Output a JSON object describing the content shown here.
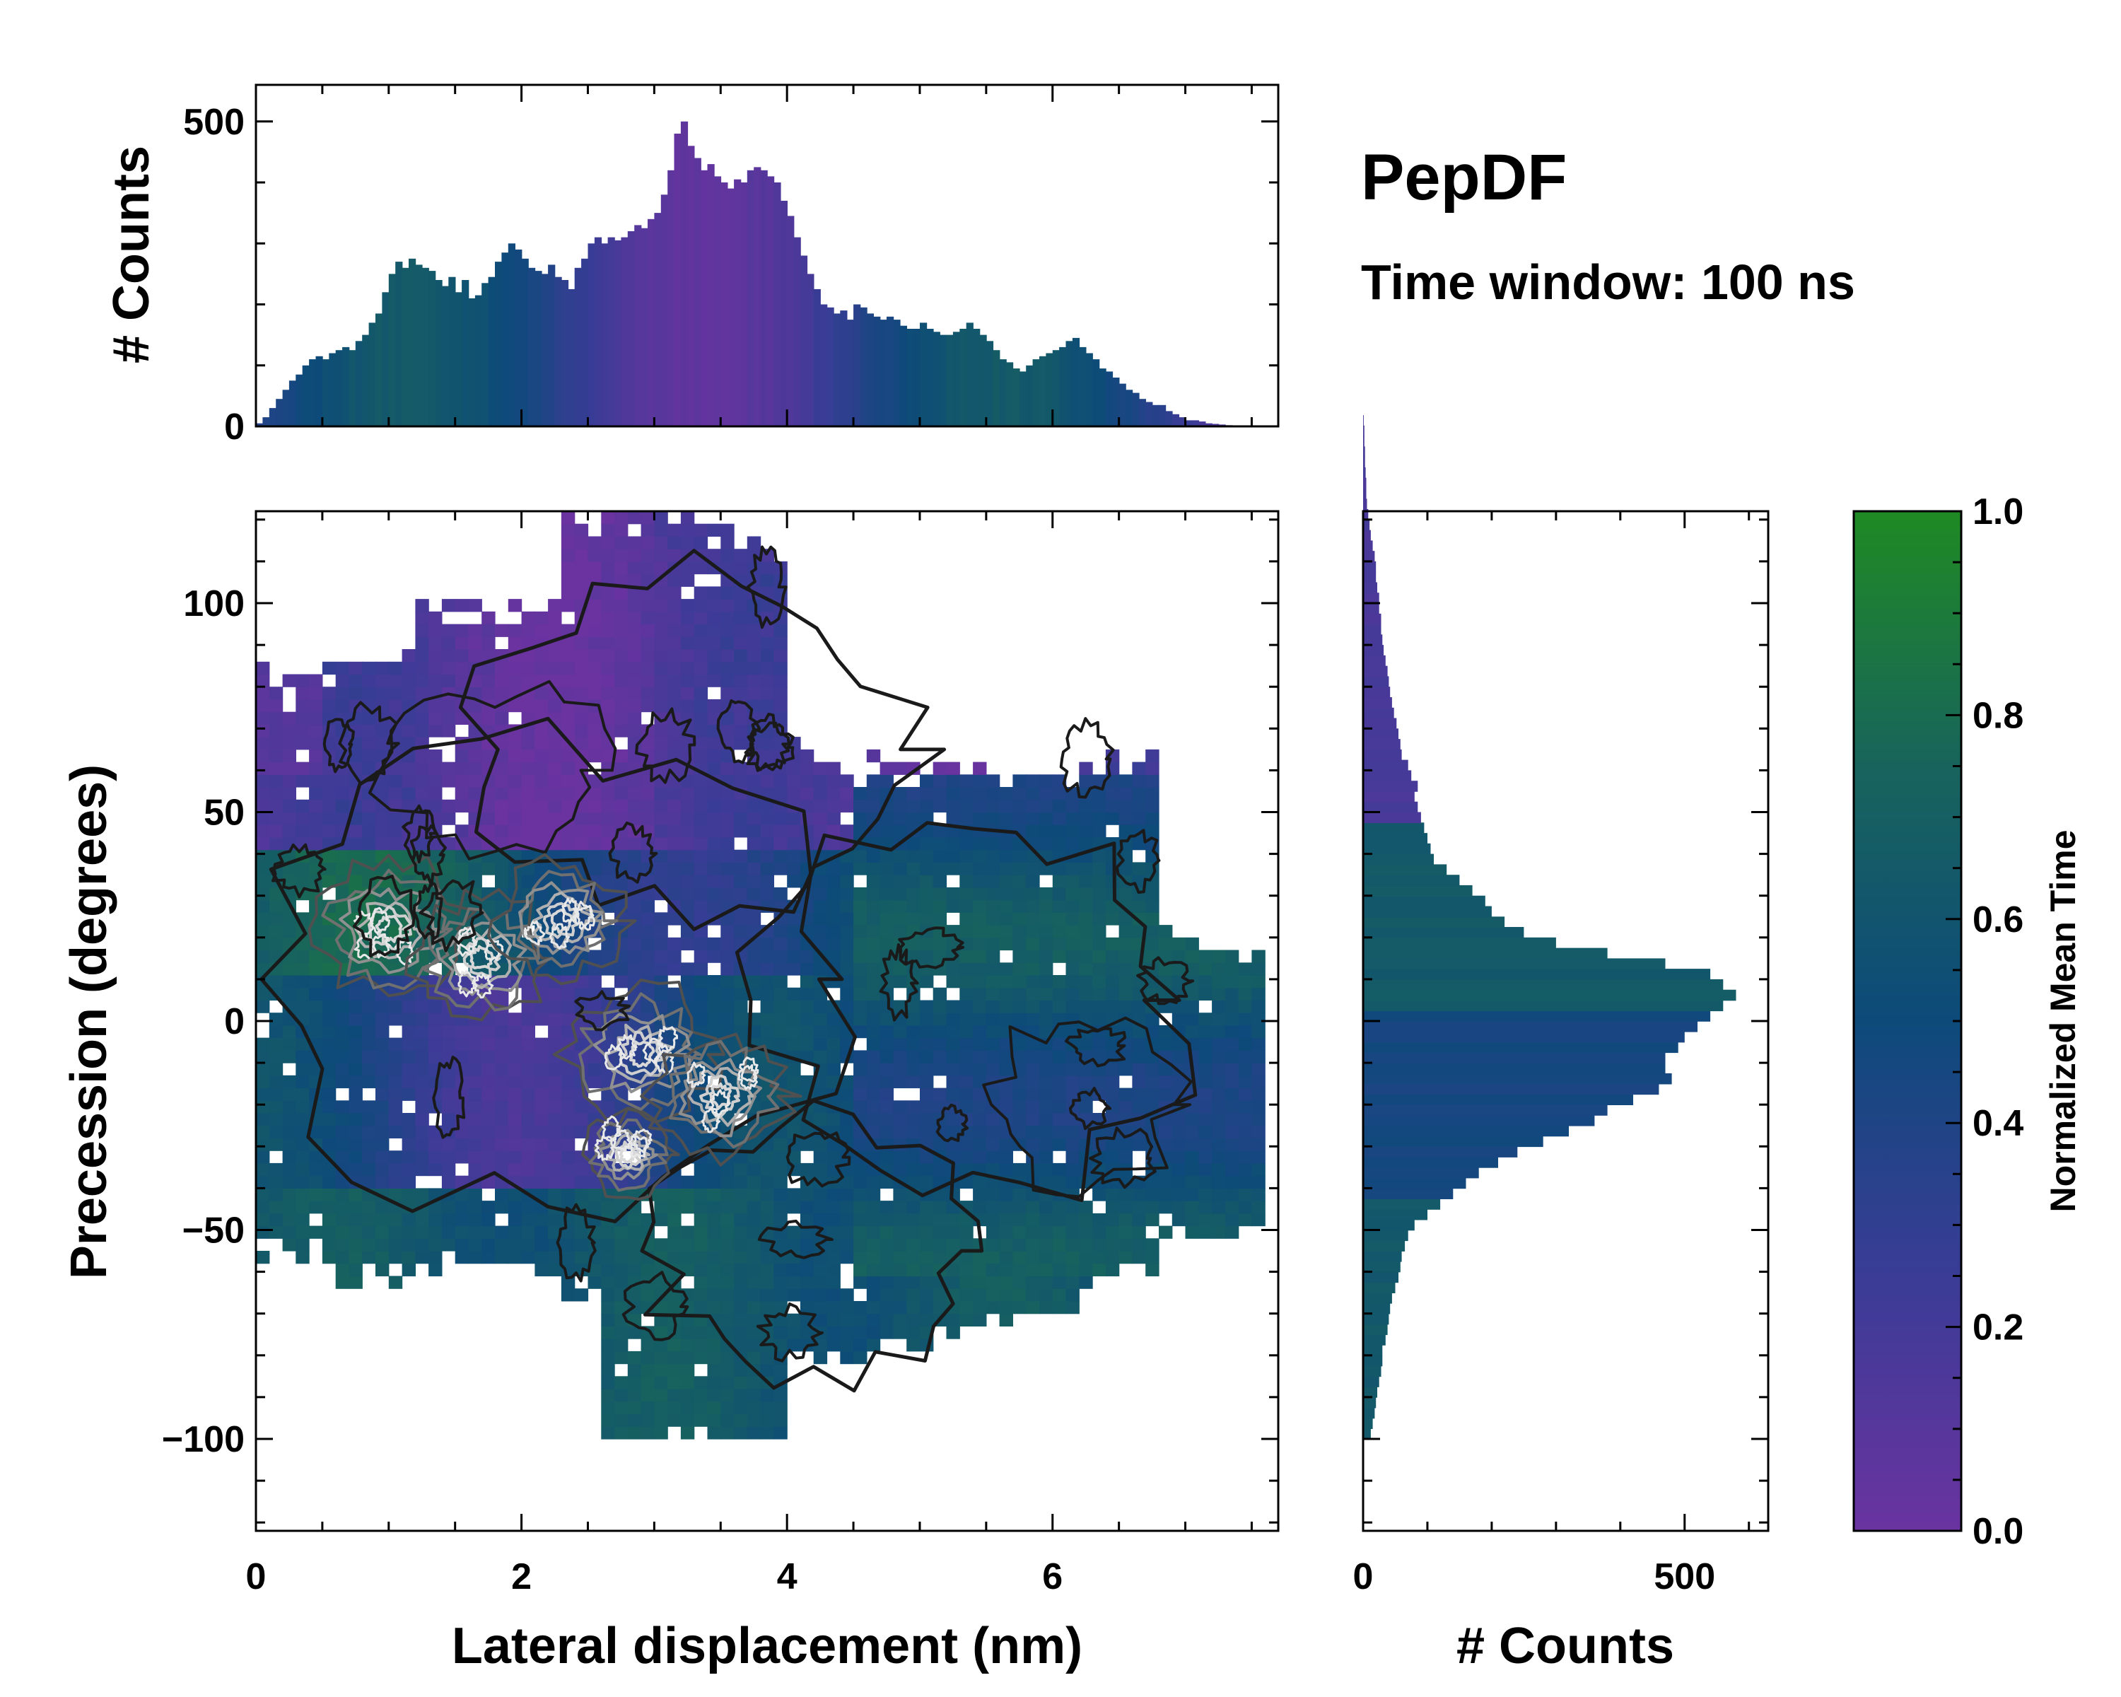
{
  "chart_data": {
    "type": "heatmap",
    "title": "PepDF",
    "subtitle": "Time window: 100 ns",
    "colors": {
      "cmap_low": "#6a33a0",
      "cmap_mid": "#0d4a7a",
      "cmap_high": "#1f8a23",
      "contour_dark": "#1a1a1a",
      "contour_light": "#d8d8d8"
    },
    "main_panel": {
      "xlabel": "Lateral displacement (nm)",
      "ylabel": "Precession (degrees)",
      "xlim": [
        0,
        7.7
      ],
      "ylim": [
        -122,
        122
      ],
      "xticks": [
        0,
        2,
        4,
        6
      ],
      "xtick_labels": [
        "0",
        "2",
        "4",
        "6"
      ],
      "yticks": [
        -100,
        -50,
        0,
        50,
        100
      ],
      "ytick_labels": [
        "−100",
        "−50",
        "0",
        "50",
        "100"
      ],
      "grid": false,
      "data_extent": {
        "x": [
          0,
          7.6
        ],
        "y": [
          -100,
          120
        ]
      },
      "density_peaks": [
        {
          "x": 1.0,
          "y": 22,
          "weight": 1.0
        },
        {
          "x": 1.7,
          "y": 15,
          "weight": 0.9
        },
        {
          "x": 2.3,
          "y": 24,
          "weight": 0.85
        },
        {
          "x": 2.9,
          "y": -8,
          "weight": 1.0
        },
        {
          "x": 3.5,
          "y": -18,
          "weight": 0.9
        },
        {
          "x": 2.8,
          "y": -32,
          "weight": 0.6
        }
      ]
    },
    "top_histogram": {
      "ylabel": "# Counts",
      "ylim": [
        0,
        560
      ],
      "yticks": [
        0,
        500
      ],
      "ytick_labels": [
        "0",
        "500"
      ],
      "bin_start": 0,
      "bin_width": 0.05,
      "values": [
        5,
        15,
        30,
        45,
        60,
        75,
        85,
        100,
        110,
        115,
        110,
        120,
        125,
        130,
        125,
        140,
        150,
        170,
        185,
        220,
        250,
        270,
        260,
        275,
        265,
        260,
        255,
        240,
        230,
        245,
        220,
        240,
        210,
        215,
        235,
        245,
        270,
        285,
        300,
        290,
        275,
        260,
        255,
        250,
        265,
        245,
        240,
        225,
        260,
        275,
        300,
        310,
        300,
        310,
        305,
        310,
        320,
        330,
        325,
        340,
        350,
        380,
        420,
        480,
        500,
        460,
        440,
        420,
        430,
        410,
        400,
        390,
        405,
        400,
        420,
        425,
        420,
        410,
        400,
        370,
        345,
        310,
        280,
        250,
        225,
        200,
        195,
        185,
        190,
        175,
        200,
        195,
        185,
        180,
        175,
        180,
        175,
        165,
        160,
        160,
        170,
        160,
        155,
        150,
        150,
        155,
        160,
        170,
        160,
        150,
        140,
        125,
        110,
        105,
        95,
        90,
        100,
        110,
        115,
        120,
        125,
        130,
        140,
        145,
        130,
        120,
        110,
        95,
        90,
        80,
        70,
        60,
        55,
        45,
        40,
        35,
        35,
        25,
        20,
        15,
        10,
        10,
        8,
        5,
        4,
        3,
        2,
        1,
        1,
        1,
        0,
        0,
        0,
        0
      ],
      "colors_by_bin": "data-based"
    },
    "right_histogram": {
      "xlabel": "# Counts",
      "xlim": [
        0,
        630
      ],
      "xticks": [
        0,
        500
      ],
      "xtick_labels": [
        "0",
        "500"
      ],
      "bin_start": -100,
      "bin_width": 2.5,
      "values": [
        12,
        15,
        18,
        20,
        22,
        25,
        28,
        30,
        30,
        35,
        38,
        40,
        42,
        45,
        50,
        55,
        58,
        60,
        65,
        70,
        80,
        100,
        120,
        140,
        160,
        180,
        210,
        240,
        280,
        320,
        360,
        380,
        420,
        460,
        480,
        470,
        470,
        490,
        500,
        520,
        540,
        560,
        580,
        560,
        540,
        470,
        380,
        300,
        250,
        220,
        200,
        190,
        170,
        150,
        130,
        110,
        105,
        100,
        95,
        90,
        85,
        80,
        85,
        75,
        70,
        60,
        58,
        55,
        52,
        48,
        45,
        42,
        40,
        38,
        35,
        32,
        30,
        28,
        28,
        25,
        25,
        22,
        20,
        20,
        18,
        15,
        12,
        10,
        8,
        6,
        5,
        5,
        4,
        3,
        3,
        2,
        2,
        1
      ],
      "colors_by_bin": "data-based"
    },
    "colorbar": {
      "label": "Normalized Mean Time",
      "range": [
        0.0,
        1.0
      ],
      "ticks": [
        0.0,
        0.2,
        0.4,
        0.6,
        0.8,
        1.0
      ],
      "tick_labels": [
        "0.0",
        "0.2",
        "0.4",
        "0.6",
        "0.8",
        "1.0"
      ]
    }
  }
}
